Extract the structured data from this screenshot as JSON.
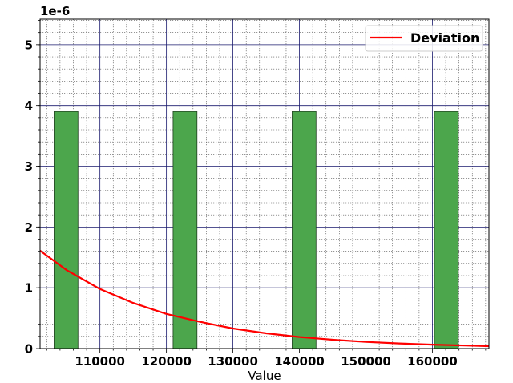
{
  "chart_data": {
    "type": "bar",
    "xlabel": "Value",
    "ylabel": "",
    "y_offset_label": "1e-6",
    "xlim": [
      101000,
      168500
    ],
    "ylim": [
      0,
      5.42
    ],
    "x_ticks": [
      110000,
      120000,
      130000,
      140000,
      150000,
      160000
    ],
    "x_tick_labels": [
      "110000",
      "120000",
      "130000",
      "140000",
      "150000",
      "160000"
    ],
    "y_ticks": [
      0,
      1,
      2,
      3,
      4,
      5
    ],
    "y_tick_labels": [
      "0",
      "1",
      "2",
      "3",
      "4",
      "5"
    ],
    "bars": [
      {
        "x0": 103100,
        "x1": 106700,
        "value": 3.9
      },
      {
        "x0": 121000,
        "x1": 124600,
        "value": 3.9
      },
      {
        "x0": 138900,
        "x1": 142500,
        "value": 3.9
      },
      {
        "x0": 160300,
        "x1": 163900,
        "value": 3.9
      }
    ],
    "series": [
      {
        "name": "Deviation",
        "color": "#ff0000",
        "x": [
          101000,
          105000,
          110000,
          115000,
          120000,
          125000,
          130000,
          135000,
          140000,
          145000,
          150000,
          155000,
          160000,
          165000,
          168500
        ],
        "y": [
          1.61,
          1.29,
          0.98,
          0.75,
          0.57,
          0.44,
          0.33,
          0.25,
          0.19,
          0.145,
          0.11,
          0.085,
          0.065,
          0.05,
          0.04
        ]
      }
    ],
    "bar_color": "#4ca64c",
    "grid": true,
    "minor_grid": true,
    "legend_position": "upper-right"
  }
}
